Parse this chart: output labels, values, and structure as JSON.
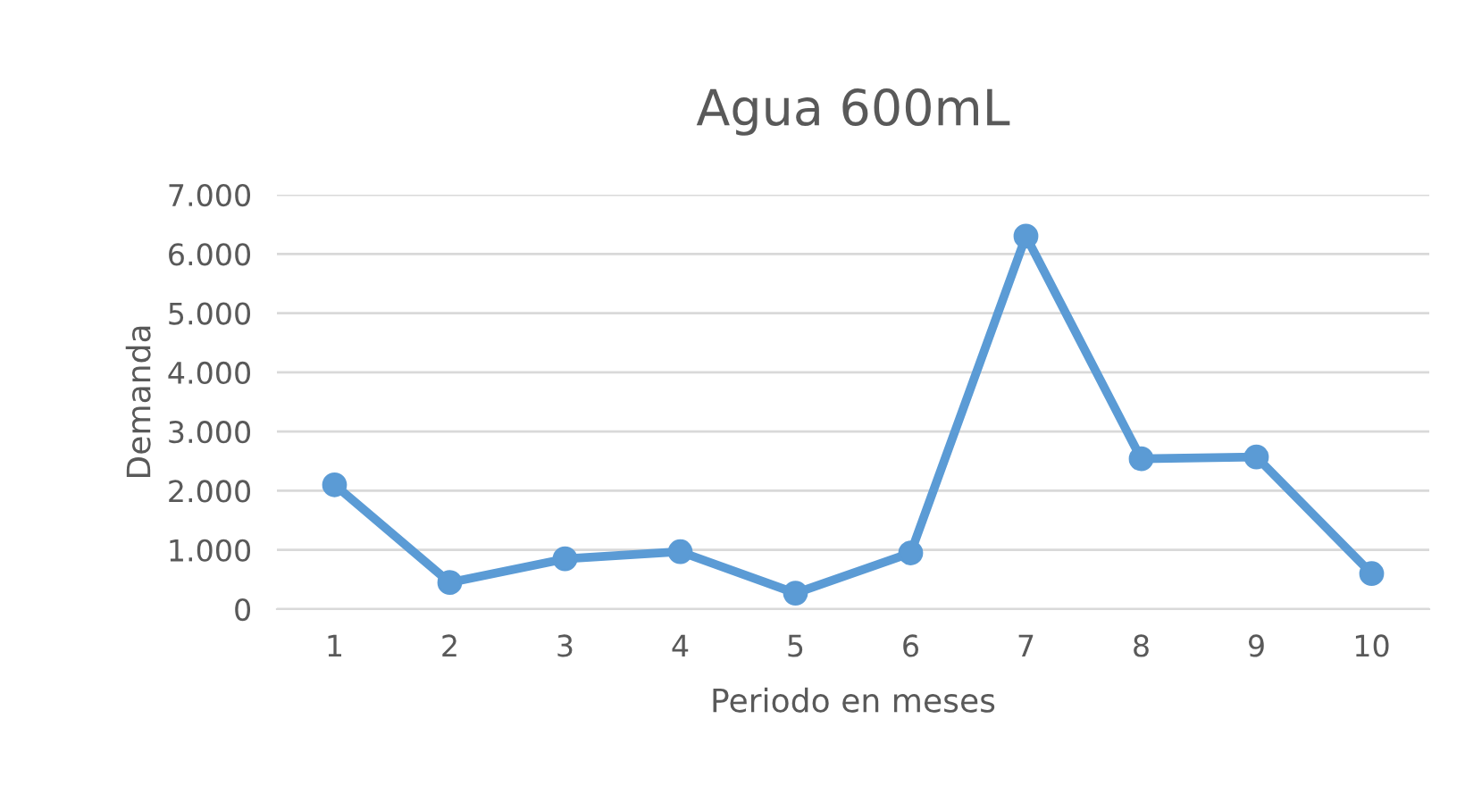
{
  "chart_data": {
    "type": "line",
    "title": "Agua 600mL",
    "xlabel": "Periodo en meses",
    "ylabel": "Demanda",
    "categories": [
      "1",
      "2",
      "3",
      "4",
      "5",
      "6",
      "7",
      "8",
      "9",
      "10"
    ],
    "series": [
      {
        "color": "#5b9bd5",
        "values": [
          2100,
          450,
          850,
          970,
          270,
          950,
          6300,
          2540,
          2570,
          600
        ]
      }
    ],
    "ylim": [
      0,
      7000
    ],
    "yticks": [
      {
        "value": 0,
        "label": "0"
      },
      {
        "value": 1000,
        "label": "1.000"
      },
      {
        "value": 2000,
        "label": "2.000"
      },
      {
        "value": 3000,
        "label": "3.000"
      },
      {
        "value": 4000,
        "label": "4.000"
      },
      {
        "value": 5000,
        "label": "5.000"
      },
      {
        "value": 6000,
        "label": "6.000"
      },
      {
        "value": 7000,
        "label": "7.000"
      }
    ],
    "grid": "y",
    "marker": "circle",
    "line_style": "solid",
    "legend": false
  }
}
